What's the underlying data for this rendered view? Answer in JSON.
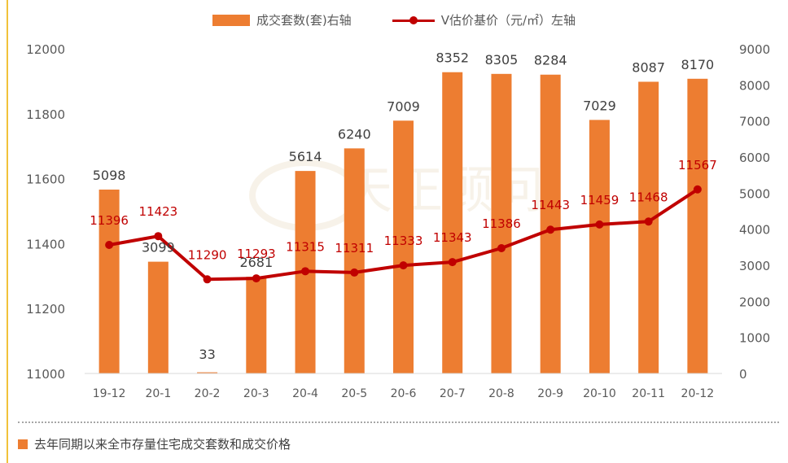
{
  "legend": {
    "bar_label": "成交套数(套)右轴",
    "line_label": "V估价基价（元/㎡）左轴"
  },
  "caption": "去年同期以来全市存量住宅成交套数和成交价格",
  "watermark_text": "天正顾问",
  "colors": {
    "bar": "#ed7d31",
    "line": "#c00000",
    "axis_text": "#595959"
  },
  "chart_data": {
    "type": "bar+line",
    "categories": [
      "19-12",
      "20-1",
      "20-2",
      "20-3",
      "20-4",
      "20-5",
      "20-6",
      "20-7",
      "20-8",
      "20-9",
      "20-10",
      "20-11",
      "20-12"
    ],
    "series": [
      {
        "name": "成交套数(套)",
        "type": "bar",
        "axis": "right",
        "values": [
          5098,
          3099,
          33,
          2681,
          5614,
          6240,
          7009,
          8352,
          8305,
          8284,
          7029,
          8087,
          8170
        ]
      },
      {
        "name": "V估价基价（元/㎡）",
        "type": "line",
        "axis": "left",
        "values": [
          11396,
          11423,
          11290,
          11293,
          11315,
          11311,
          11333,
          11343,
          11386,
          11443,
          11459,
          11468,
          11567
        ]
      }
    ],
    "left_axis": {
      "range": [
        11000,
        12000
      ],
      "ticks": [
        "11000",
        "11200",
        "11400",
        "11600",
        "11800",
        "12000"
      ]
    },
    "right_axis": {
      "range": [
        0,
        9000
      ],
      "ticks": [
        "0",
        "1000",
        "2000",
        "3000",
        "4000",
        "5000",
        "6000",
        "7000",
        "8000",
        "9000"
      ]
    },
    "grid": false,
    "legend_position": "top-center"
  }
}
